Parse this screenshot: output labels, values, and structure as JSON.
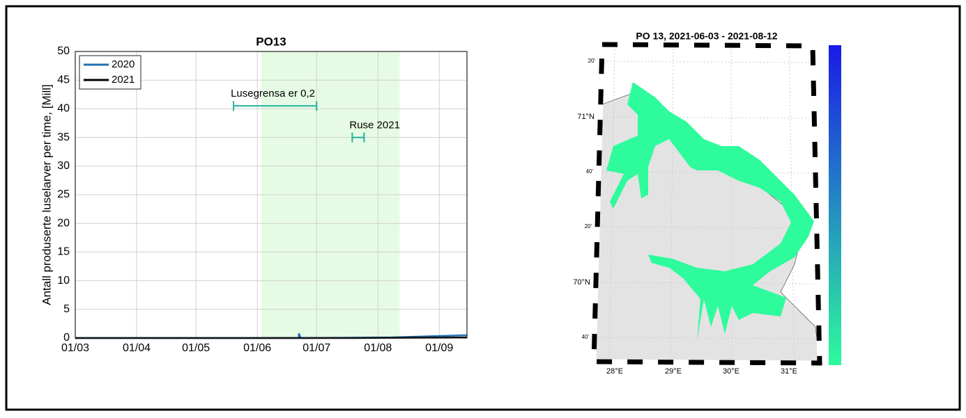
{
  "chart_data": {
    "type": "line",
    "title": "PO13",
    "y_label": "Antall produserte luselarver per time, [Mill]",
    "xlim": [
      60,
      258
    ],
    "ylim": [
      0,
      50
    ],
    "xticks": [
      {
        "value": 60,
        "label": "01/03"
      },
      {
        "value": 91,
        "label": "01/04"
      },
      {
        "value": 121,
        "label": "01/05"
      },
      {
        "value": 152,
        "label": "01/06"
      },
      {
        "value": 182,
        "label": "01/07"
      },
      {
        "value": 213,
        "label": "01/08"
      },
      {
        "value": 244,
        "label": "01/09"
      }
    ],
    "yticks": [
      0,
      5,
      10,
      15,
      20,
      25,
      30,
      35,
      40,
      45,
      50
    ],
    "grid": true,
    "legend": "upper-left",
    "shaded_x": [
      154,
      224
    ],
    "shaded_color": "#e6fbe3",
    "series": [
      {
        "name": "2020",
        "color": "#1f6fb4",
        "x": [
          60,
          173,
          173,
          174,
          220,
          258
        ],
        "values": [
          0,
          0,
          0.8,
          0,
          0.1,
          0.5
        ]
      },
      {
        "name": "2021",
        "color": "#000000",
        "x": [
          60,
          200,
          258
        ],
        "values": [
          0,
          0,
          0.1
        ]
      }
    ],
    "annotations": [
      {
        "text": "Lusegrensa er 0,2",
        "x": [
          140,
          182
        ],
        "y": 40.5,
        "color": "#20b2a0"
      },
      {
        "text": "Ruse 2021",
        "x": [
          200,
          206
        ],
        "y": 35,
        "color": "#20b2a0"
      }
    ]
  },
  "map": {
    "title": "PO 13, 2021-06-03 - 2021-08-12",
    "lat_labels": [
      "20'",
      "71°N",
      "40'",
      "20'",
      "70°N",
      "40'"
    ],
    "lon_labels": [
      "28°E",
      "29°E",
      "30°E",
      "31°E"
    ],
    "colorbar_colors": [
      "#1a1ae8",
      "#2efb9c"
    ]
  }
}
